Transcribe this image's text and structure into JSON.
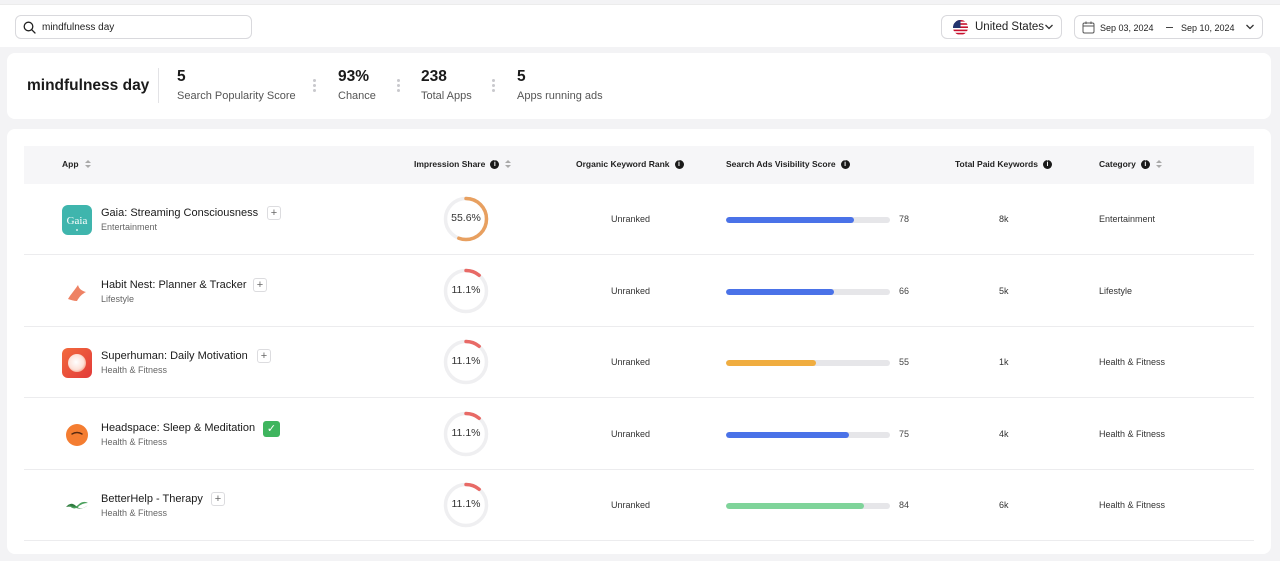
{
  "search": {
    "value": "mindfulness day",
    "icon": "search-icon"
  },
  "country": {
    "label": "United States",
    "flag": "us-flag-icon"
  },
  "date_range": {
    "start": "Sep 03, 2024",
    "end": "Sep 10, 2024"
  },
  "summary": {
    "keyword": "mindfulness day",
    "stats": [
      {
        "value": "5",
        "label": "Search Popularity Score"
      },
      {
        "value": "93%",
        "label": "Chance"
      },
      {
        "value": "238",
        "label": "Total Apps"
      },
      {
        "value": "5",
        "label": "Apps running ads"
      }
    ]
  },
  "table": {
    "headers": {
      "app": "App",
      "impression": "Impression Share",
      "organic": "Organic Keyword Rank",
      "ads": "Search Ads Visibility Score",
      "paid": "Total Paid Keywords",
      "category": "Category"
    },
    "rows": [
      {
        "name": "Gaia: Streaming Consciousness",
        "subtitle": "Entertainment",
        "impression": "55.6%",
        "impression_fraction": 0.556,
        "ring_color": "#e8a060",
        "rank": "Unranked",
        "score": "78",
        "score_fraction": 0.78,
        "bar_color": "#4a72e8",
        "paid": "8k",
        "category": "Entertainment",
        "tracked": false,
        "icon_text": "Gaia"
      },
      {
        "name": "Habit Nest: Planner & Tracker",
        "subtitle": "Lifestyle",
        "impression": "11.1%",
        "impression_fraction": 0.111,
        "ring_color": "#e86a66",
        "rank": "Unranked",
        "score": "66",
        "score_fraction": 0.66,
        "bar_color": "#4a72e8",
        "paid": "5k",
        "category": "Lifestyle",
        "tracked": false,
        "icon_text": ""
      },
      {
        "name": "Superhuman: Daily Motivation",
        "subtitle": "Health & Fitness",
        "impression": "11.1%",
        "impression_fraction": 0.111,
        "ring_color": "#e86a66",
        "rank": "Unranked",
        "score": "55",
        "score_fraction": 0.55,
        "bar_color": "#f0ad40",
        "paid": "1k",
        "category": "Health & Fitness",
        "tracked": false,
        "icon_text": ""
      },
      {
        "name": "Headspace: Sleep & Meditation",
        "subtitle": "Health & Fitness",
        "impression": "11.1%",
        "impression_fraction": 0.111,
        "ring_color": "#e86a66",
        "rank": "Unranked",
        "score": "75",
        "score_fraction": 0.75,
        "bar_color": "#4a72e8",
        "paid": "4k",
        "category": "Health & Fitness",
        "tracked": true,
        "icon_text": ""
      },
      {
        "name": "BetterHelp - Therapy",
        "subtitle": "Health & Fitness",
        "impression": "11.1%",
        "impression_fraction": 0.111,
        "ring_color": "#e86a66",
        "rank": "Unranked",
        "score": "84",
        "score_fraction": 0.84,
        "bar_color": "#7fd49a",
        "paid": "6k",
        "category": "Health & Fitness",
        "tracked": false,
        "icon_text": ""
      }
    ]
  }
}
